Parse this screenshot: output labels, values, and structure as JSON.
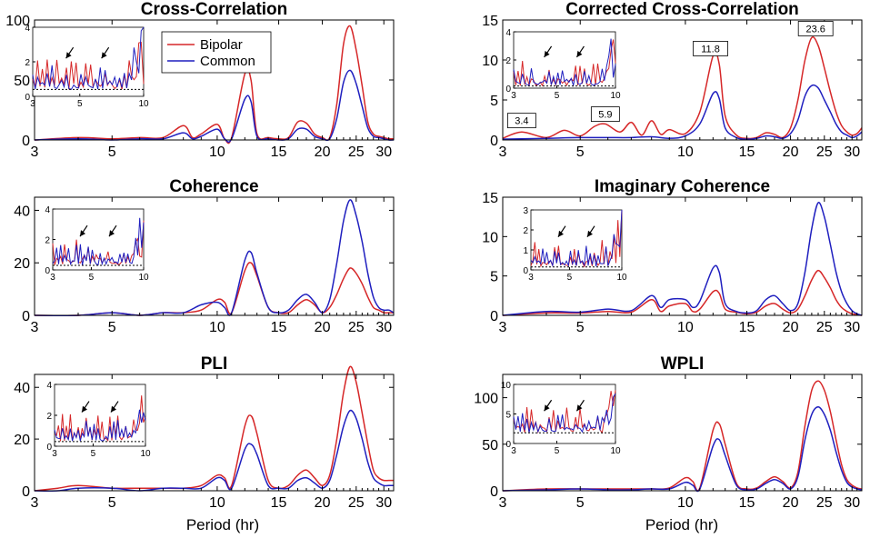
{
  "figure_xlabel": "Period (hr)",
  "legend": {
    "items": [
      "Bipolar",
      "Common"
    ]
  },
  "colors": {
    "bipolar": "#d62728",
    "common": "#1f1fbf",
    "axis": "#000000"
  },
  "chart_data": [
    {
      "id": "xcorr",
      "type": "line",
      "title": "Cross-Correlation",
      "show_xlabel": false,
      "xlim": [
        3,
        32
      ],
      "ylim": [
        0,
        100
      ],
      "yticks": [
        0,
        50,
        100
      ],
      "xticks": [
        3,
        5,
        10,
        15,
        20,
        25,
        30
      ],
      "series": [
        {
          "name": "Bipolar",
          "color": "#d62728",
          "x": [
            3,
            4,
            5,
            6,
            7,
            8,
            8.5,
            9,
            10,
            10.5,
            11,
            12,
            12.5,
            13,
            14,
            15,
            16,
            17,
            18,
            19,
            20,
            21,
            22,
            23,
            24,
            25,
            26,
            27,
            28,
            29,
            30,
            31,
            32
          ],
          "y": [
            0,
            2,
            1,
            2,
            2,
            12,
            2,
            5,
            13,
            1,
            2,
            55,
            50,
            5,
            2,
            1,
            2,
            15,
            14,
            5,
            2,
            2,
            30,
            80,
            95,
            75,
            45,
            15,
            5,
            3,
            2,
            1,
            1
          ]
        },
        {
          "name": "Common",
          "color": "#1f1fbf",
          "x": [
            3,
            4,
            5,
            6,
            7,
            8,
            8.5,
            9,
            10,
            10.5,
            11,
            12,
            12.5,
            13,
            14,
            15,
            16,
            17,
            18,
            19,
            20,
            21,
            22,
            23,
            24,
            25,
            26,
            27,
            28,
            29,
            30,
            31,
            32
          ],
          "y": [
            0,
            1,
            0,
            1,
            1,
            6,
            1,
            3,
            9,
            1,
            1,
            34,
            32,
            3,
            1,
            0,
            1,
            9,
            9,
            3,
            1,
            1,
            18,
            48,
            58,
            47,
            28,
            10,
            3,
            2,
            1,
            0,
            0
          ]
        }
      ],
      "inset": {
        "xlim": [
          3,
          10
        ],
        "ylim": [
          0,
          4
        ],
        "yticks": [
          0,
          2,
          4
        ],
        "xticks": [
          3,
          5,
          10
        ],
        "baseline": 0.4
      },
      "legend": true,
      "annotations": []
    },
    {
      "id": "corrxcorr",
      "type": "line",
      "title": "Corrected Cross-Correlation",
      "show_xlabel": false,
      "xlim": [
        3,
        32
      ],
      "ylim": [
        0,
        15
      ],
      "yticks": [
        0,
        5,
        10,
        15
      ],
      "xticks": [
        3,
        5,
        10,
        15,
        20,
        25,
        30
      ],
      "series": [
        {
          "name": "Bipolar",
          "color": "#d62728",
          "x": [
            3,
            3.4,
            4,
            4.5,
            5,
            5.5,
            5.9,
            6.5,
            7,
            7.5,
            8,
            8.5,
            9,
            10,
            11,
            12,
            12.5,
            13,
            14,
            15,
            16,
            17,
            18,
            19,
            20,
            21,
            22,
            23,
            24,
            25,
            26,
            27,
            28,
            29,
            30,
            31,
            32
          ],
          "y": [
            0.2,
            1.0,
            0.3,
            1.2,
            0.5,
            1.7,
            2.0,
            1.0,
            2.2,
            0.6,
            2.4,
            0.7,
            1.3,
            0.8,
            3.5,
            10.5,
            9.5,
            3.0,
            0.6,
            0.2,
            0.3,
            0.9,
            0.7,
            0.3,
            1.5,
            5.0,
            10.0,
            12.8,
            11.8,
            9.0,
            6.0,
            3.5,
            1.8,
            1.0,
            0.6,
            0.8,
            1.5
          ]
        },
        {
          "name": "Common",
          "color": "#1f1fbf",
          "x": [
            3,
            4,
            5,
            6,
            7,
            8,
            9,
            10,
            11,
            12,
            12.5,
            13,
            14,
            15,
            16,
            17,
            18,
            19,
            20,
            21,
            22,
            23,
            24,
            25,
            26,
            27,
            28,
            29,
            30,
            31,
            32
          ],
          "y": [
            0.1,
            0.2,
            0.3,
            0.3,
            0.3,
            0.4,
            0.2,
            0.5,
            2.0,
            5.8,
            5.2,
            1.5,
            0.3,
            0.1,
            0.2,
            0.5,
            0.4,
            0.2,
            0.8,
            2.5,
            5.5,
            6.8,
            6.5,
            5.0,
            3.5,
            2.0,
            1.0,
            0.6,
            0.3,
            0.5,
            1.0
          ]
        }
      ],
      "inset": {
        "xlim": [
          3,
          10
        ],
        "ylim": [
          0,
          4
        ],
        "yticks": [
          0,
          2,
          4
        ],
        "xticks": [
          3,
          5,
          10
        ],
        "baseline": 0.15
      },
      "legend": false,
      "annotations": [
        {
          "text": "3.4",
          "x": 3.4,
          "y": 2.2
        },
        {
          "text": "5.9",
          "x": 5.9,
          "y": 3.0
        },
        {
          "text": "11.8",
          "x": 11.8,
          "y": 11.2
        },
        {
          "text": "23.6",
          "x": 23.6,
          "y": 13.7
        }
      ]
    },
    {
      "id": "coh",
      "type": "line",
      "title": "Coherence",
      "show_xlabel": false,
      "xlim": [
        3,
        32
      ],
      "ylim": [
        0,
        45
      ],
      "yticks": [
        0,
        20,
        40
      ],
      "xticks": [
        3,
        5,
        10,
        15,
        20,
        25,
        30
      ],
      "series": [
        {
          "name": "Bipolar",
          "color": "#d62728",
          "x": [
            3,
            4,
            5,
            6,
            7,
            8,
            9,
            10,
            10.5,
            11,
            12,
            12.5,
            13,
            14,
            15,
            16,
            17,
            18,
            19,
            20,
            21,
            22,
            23,
            24,
            25,
            26,
            27,
            28,
            29,
            30,
            31,
            32
          ],
          "y": [
            0,
            0,
            1,
            0,
            1,
            1,
            2,
            6,
            5,
            1,
            17,
            20,
            15,
            3,
            1,
            1,
            4,
            6,
            4,
            1,
            3,
            8,
            14,
            18,
            16,
            12,
            7,
            3,
            2,
            1,
            1,
            1
          ]
        },
        {
          "name": "Common",
          "color": "#1f1fbf",
          "x": [
            3,
            4,
            5,
            6,
            7,
            8,
            9,
            10,
            10.5,
            11,
            12,
            12.5,
            13,
            14,
            15,
            16,
            17,
            18,
            19,
            20,
            21,
            22,
            23,
            24,
            25,
            26,
            27,
            28,
            29,
            30,
            31,
            32
          ],
          "y": [
            0,
            0,
            1,
            0,
            1,
            1,
            4,
            5,
            3,
            1,
            21,
            24,
            16,
            3,
            1,
            2,
            6,
            8,
            5,
            1,
            6,
            20,
            36,
            44,
            38,
            28,
            16,
            7,
            3,
            2,
            2,
            1
          ]
        }
      ],
      "inset": {
        "xlim": [
          3,
          10
        ],
        "ylim": [
          0,
          4
        ],
        "yticks": [
          0,
          2,
          4
        ],
        "xticks": [
          3,
          5,
          10
        ],
        "baseline": 0.3
      },
      "legend": false,
      "annotations": []
    },
    {
      "id": "imcoh",
      "type": "line",
      "title": "Imaginary Coherence",
      "show_xlabel": false,
      "xlim": [
        3,
        32
      ],
      "ylim": [
        0,
        15
      ],
      "yticks": [
        0,
        5,
        10,
        15
      ],
      "xticks": [
        3,
        5,
        10,
        15,
        20,
        25,
        30
      ],
      "series": [
        {
          "name": "Bipolar",
          "color": "#d62728",
          "x": [
            3,
            4,
            5,
            6,
            7,
            8,
            8.5,
            9,
            10,
            10.5,
            11,
            12,
            12.5,
            13,
            14,
            15,
            16,
            17,
            18,
            19,
            20,
            21,
            22,
            23,
            24,
            25,
            26,
            27,
            28,
            29,
            30,
            31,
            32
          ],
          "y": [
            0,
            0.3,
            0.3,
            0.5,
            0.4,
            2.0,
            0.5,
            1.2,
            1.5,
            0.5,
            0.8,
            3.0,
            2.8,
            0.8,
            0.4,
            0.2,
            0.4,
            1.2,
            1.5,
            0.8,
            0.3,
            0.8,
            2.5,
            4.5,
            5.7,
            4.8,
            3.5,
            2.0,
            1.0,
            0.5,
            0.2,
            0.1,
            0
          ]
        },
        {
          "name": "Common",
          "color": "#1f1fbf",
          "x": [
            3,
            4,
            5,
            6,
            7,
            8,
            8.5,
            9,
            10,
            10.5,
            11,
            12,
            12.5,
            13,
            14,
            15,
            16,
            17,
            18,
            19,
            20,
            21,
            22,
            23,
            24,
            25,
            26,
            27,
            28,
            29,
            30,
            31,
            32
          ],
          "y": [
            0,
            0.5,
            0.4,
            0.8,
            0.6,
            2.5,
            1.0,
            2.0,
            2.0,
            1.0,
            1.8,
            6.0,
            5.5,
            1.5,
            0.5,
            0.3,
            0.6,
            2.0,
            2.5,
            1.5,
            0.6,
            1.5,
            5.5,
            11.0,
            14.3,
            12.5,
            9.0,
            5.5,
            3.0,
            1.5,
            0.6,
            0.2,
            0
          ]
        }
      ],
      "inset": {
        "xlim": [
          3,
          10
        ],
        "ylim": [
          0,
          3
        ],
        "yticks": [
          0,
          1,
          2,
          3
        ],
        "xticks": [
          3,
          5,
          10
        ],
        "baseline": 0.15
      },
      "legend": false,
      "annotations": []
    },
    {
      "id": "pli",
      "type": "line",
      "title": "PLI",
      "show_xlabel": true,
      "xlim": [
        3,
        32
      ],
      "ylim": [
        0,
        45
      ],
      "yticks": [
        0,
        20,
        40
      ],
      "xticks": [
        3,
        5,
        10,
        15,
        20,
        25,
        30
      ],
      "series": [
        {
          "name": "Bipolar",
          "color": "#d62728",
          "x": [
            3,
            3.5,
            4,
            5,
            6,
            7,
            8,
            9,
            10,
            10.5,
            11,
            12,
            12.5,
            13,
            14,
            15,
            16,
            17,
            18,
            19,
            20,
            21,
            22,
            23,
            24,
            25,
            26,
            27,
            28,
            29,
            30,
            31,
            32
          ],
          "y": [
            0,
            1,
            2,
            1,
            1,
            1,
            1,
            2,
            6,
            5,
            2,
            25,
            29,
            22,
            4,
            1,
            2,
            6,
            8,
            5,
            2,
            6,
            20,
            38,
            48,
            42,
            30,
            18,
            8,
            5,
            4,
            4,
            4
          ]
        },
        {
          "name": "Common",
          "color": "#1f1fbf",
          "x": [
            3,
            3.5,
            4,
            5,
            6,
            7,
            8,
            9,
            10,
            10.5,
            11,
            12,
            12.5,
            13,
            14,
            15,
            16,
            17,
            18,
            19,
            20,
            21,
            22,
            23,
            24,
            25,
            26,
            27,
            28,
            29,
            30,
            31,
            32
          ],
          "y": [
            0,
            0,
            1,
            1,
            0,
            1,
            1,
            1,
            5,
            4,
            1,
            16,
            18,
            14,
            2,
            1,
            1,
            4,
            5,
            3,
            1,
            4,
            14,
            25,
            31,
            28,
            20,
            11,
            5,
            3,
            2,
            2,
            2
          ]
        }
      ],
      "inset": {
        "xlim": [
          3,
          10
        ],
        "ylim": [
          0,
          4
        ],
        "yticks": [
          0,
          2,
          4
        ],
        "xticks": [
          3,
          5,
          10
        ],
        "baseline": 0.3
      },
      "legend": false,
      "annotations": []
    },
    {
      "id": "wpli",
      "type": "line",
      "title": "WPLI",
      "show_xlabel": true,
      "xlim": [
        3,
        32
      ],
      "ylim": [
        0,
        125
      ],
      "yticks": [
        0,
        50,
        100
      ],
      "xticks": [
        3,
        5,
        10,
        15,
        20,
        25,
        30
      ],
      "series": [
        {
          "name": "Bipolar",
          "color": "#d62728",
          "x": [
            3,
            4,
            5,
            6,
            7,
            8,
            9,
            10,
            10.5,
            11,
            12,
            12.5,
            13,
            14,
            15,
            16,
            17,
            18,
            19,
            20,
            21,
            22,
            23,
            24,
            25,
            26,
            27,
            28,
            29,
            30,
            31,
            32
          ],
          "y": [
            0,
            2,
            2,
            2,
            2,
            2,
            3,
            14,
            10,
            3,
            65,
            72,
            50,
            8,
            2,
            3,
            10,
            15,
            10,
            3,
            20,
            70,
            108,
            118,
            108,
            85,
            55,
            28,
            12,
            6,
            3,
            2
          ]
        },
        {
          "name": "Common",
          "color": "#1f1fbf",
          "x": [
            3,
            4,
            5,
            6,
            7,
            8,
            9,
            10,
            10.5,
            11,
            12,
            12.5,
            13,
            14,
            15,
            16,
            17,
            18,
            19,
            20,
            21,
            22,
            23,
            24,
            25,
            26,
            27,
            28,
            29,
            30,
            31,
            32
          ],
          "y": [
            0,
            1,
            2,
            1,
            1,
            2,
            2,
            9,
            6,
            2,
            48,
            55,
            38,
            6,
            1,
            2,
            8,
            12,
            8,
            2,
            15,
            55,
            82,
            90,
            82,
            65,
            42,
            22,
            9,
            4,
            2,
            1
          ]
        }
      ],
      "inset": {
        "xlim": [
          3,
          10
        ],
        "ylim": [
          0,
          10
        ],
        "yticks": [
          0,
          5,
          10
        ],
        "xticks": [
          3,
          5,
          10
        ],
        "baseline": 1.8
      },
      "legend": false,
      "annotations": []
    }
  ]
}
